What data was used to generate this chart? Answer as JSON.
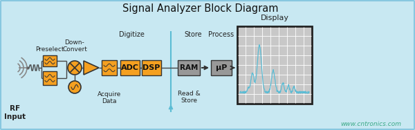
{
  "title": "Signal Analyzer Block Diagram",
  "bg_color": "#c8e8f2",
  "orange_color": "#f5a020",
  "gray_box_color": "#989898",
  "signal_color": "#5bbcd4",
  "watermark_color": "#3daa88",
  "watermark": "www.cntronics.com",
  "label_rf": "RF\nInput",
  "label_preselect": "Preselect",
  "label_downconvert": "Down-\nConvert",
  "label_acquire": "Acquire\nData",
  "label_ram": "RAM",
  "label_mu": "μP",
  "label_readstore": "Read &\nStore",
  "label_adc": "ADC",
  "label_dsp": "DSP",
  "subtitle_digitize": "Digitize",
  "subtitle_store": "Store",
  "subtitle_process": "Process",
  "subtitle_display": "Display",
  "line_color": "#444444",
  "box_edge": "#333333"
}
